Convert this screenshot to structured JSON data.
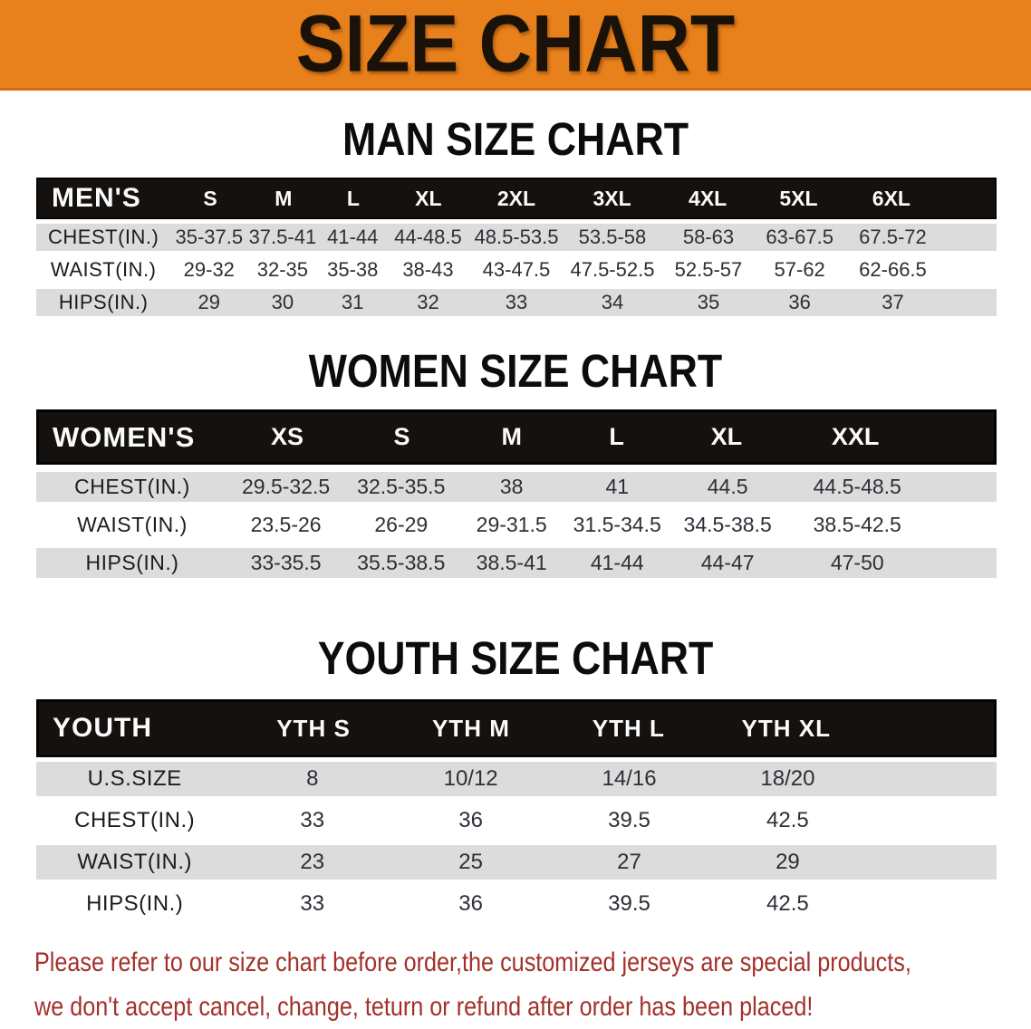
{
  "banner": {
    "title": "SIZE CHART"
  },
  "sections": {
    "men": {
      "heading": "MAN SIZE CHART",
      "corner": "MEN'S",
      "columns": [
        "S",
        "M",
        "L",
        "XL",
        "2XL",
        "3XL",
        "4XL",
        "5XL",
        "6XL"
      ],
      "rows": [
        {
          "label": "CHEST(IN.)",
          "cells": [
            "35-37.5",
            "37.5-41",
            "41-44",
            "44-48.5",
            "48.5-53.5",
            "53.5-58",
            "58-63",
            "63-67.5",
            "67.5-72"
          ]
        },
        {
          "label": "WAIST(IN.)",
          "cells": [
            "29-32",
            "32-35",
            "35-38",
            "38-43",
            "43-47.5",
            "47.5-52.5",
            "52.5-57",
            "57-62",
            "62-66.5"
          ]
        },
        {
          "label": "HIPS(IN.)",
          "cells": [
            "29",
            "30",
            "31",
            "32",
            "33",
            "34",
            "35",
            "36",
            "37"
          ]
        }
      ]
    },
    "women": {
      "heading": "WOMEN SIZE CHART",
      "corner": "WOMEN'S",
      "columns": [
        "XS",
        "S",
        "M",
        "L",
        "XL",
        "XXL"
      ],
      "rows": [
        {
          "label": "CHEST(IN.)",
          "cells": [
            "29.5-32.5",
            "32.5-35.5",
            "38",
            "41",
            "44.5",
            "44.5-48.5"
          ]
        },
        {
          "label": "WAIST(IN.)",
          "cells": [
            "23.5-26",
            "26-29",
            "29-31.5",
            "31.5-34.5",
            "34.5-38.5",
            "38.5-42.5"
          ]
        },
        {
          "label": "HIPS(IN.)",
          "cells": [
            "33-35.5",
            "35.5-38.5",
            "38.5-41",
            "41-44",
            "44-47",
            "47-50"
          ]
        }
      ]
    },
    "youth": {
      "heading": "YOUTH SIZE CHART",
      "corner": "YOUTH",
      "columns": [
        "YTH S",
        "YTH M",
        "YTH L",
        "YTH XL"
      ],
      "rows": [
        {
          "label": "U.S.SIZE",
          "cells": [
            "8",
            "10/12",
            "14/16",
            "18/20"
          ]
        },
        {
          "label": "CHEST(IN.)",
          "cells": [
            "33",
            "36",
            "39.5",
            "42.5"
          ]
        },
        {
          "label": "WAIST(IN.)",
          "cells": [
            "23",
            "25",
            "27",
            "29"
          ]
        },
        {
          "label": "HIPS(IN.)",
          "cells": [
            "33",
            "36",
            "39.5",
            "42.5"
          ]
        }
      ]
    }
  },
  "footnote": {
    "line1": "Please refer to our size chart before order,the customized jerseys are special products,",
    "line2": "we don't accept cancel, change, teturn or refund after order has been placed!"
  },
  "colors": {
    "banner_bg": "#E8811B",
    "table_header_bg": "#14110E",
    "row_stripe": "#DCDCDC",
    "footnote_red": "#A33029"
  }
}
